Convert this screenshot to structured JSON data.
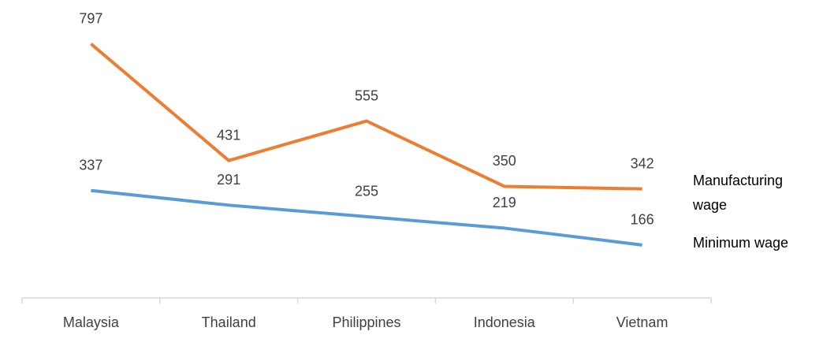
{
  "chart_data": {
    "type": "line",
    "categories": [
      "Malaysia",
      "Thailand",
      "Philippines",
      "Indonesia",
      "Vietnam"
    ],
    "series": [
      {
        "name": "Manufacturing wage",
        "color": "#ed7d31",
        "values": [
          797,
          431,
          555,
          350,
          342
        ]
      },
      {
        "name": "Minimum wage",
        "color": "#5b9bd5",
        "values": [
          337,
          291,
          255,
          219,
          166
        ]
      }
    ],
    "ylim": [
      0,
      900
    ],
    "legend": "right"
  }
}
